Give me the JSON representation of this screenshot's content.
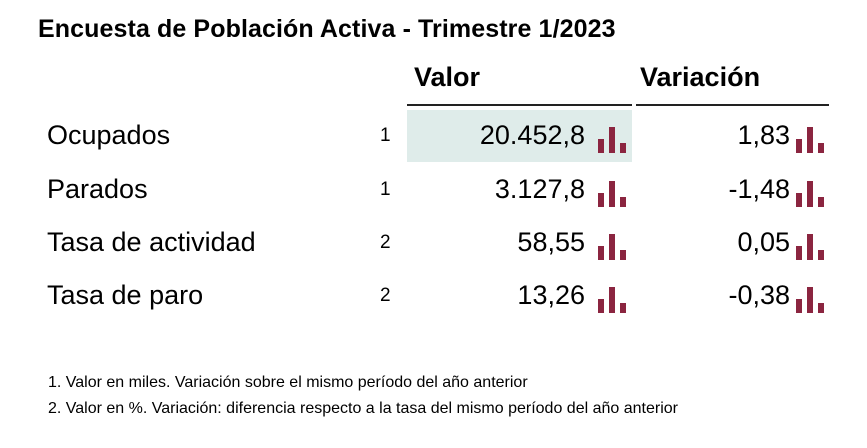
{
  "title": "Encuesta de Población Activa - Trimestre 1/2023",
  "columns": {
    "valor": "Valor",
    "variacion": "Variación"
  },
  "colors": {
    "bar_icon": "#8b2540",
    "highlight": "#dfecea",
    "rule": "#222222"
  },
  "rows": [
    {
      "label": "Ocupados",
      "note": "1",
      "valor": "20.452,8",
      "variacion": "1,83",
      "highlighted": true
    },
    {
      "label": "Parados",
      "note": "1",
      "valor": "3.127,8",
      "variacion": "-1,48",
      "highlighted": false
    },
    {
      "label": "Tasa de actividad",
      "note": "2",
      "valor": "58,55",
      "variacion": "0,05",
      "highlighted": false
    },
    {
      "label": "Tasa de paro",
      "note": "2",
      "valor": "13,26",
      "variacion": "-0,38",
      "highlighted": false
    }
  ],
  "footnotes": [
    "1. Valor en miles. Variación sobre el mismo período del año anterior",
    "2. Valor en %. Variación: diferencia respecto a la tasa del mismo período del año anterior"
  ]
}
